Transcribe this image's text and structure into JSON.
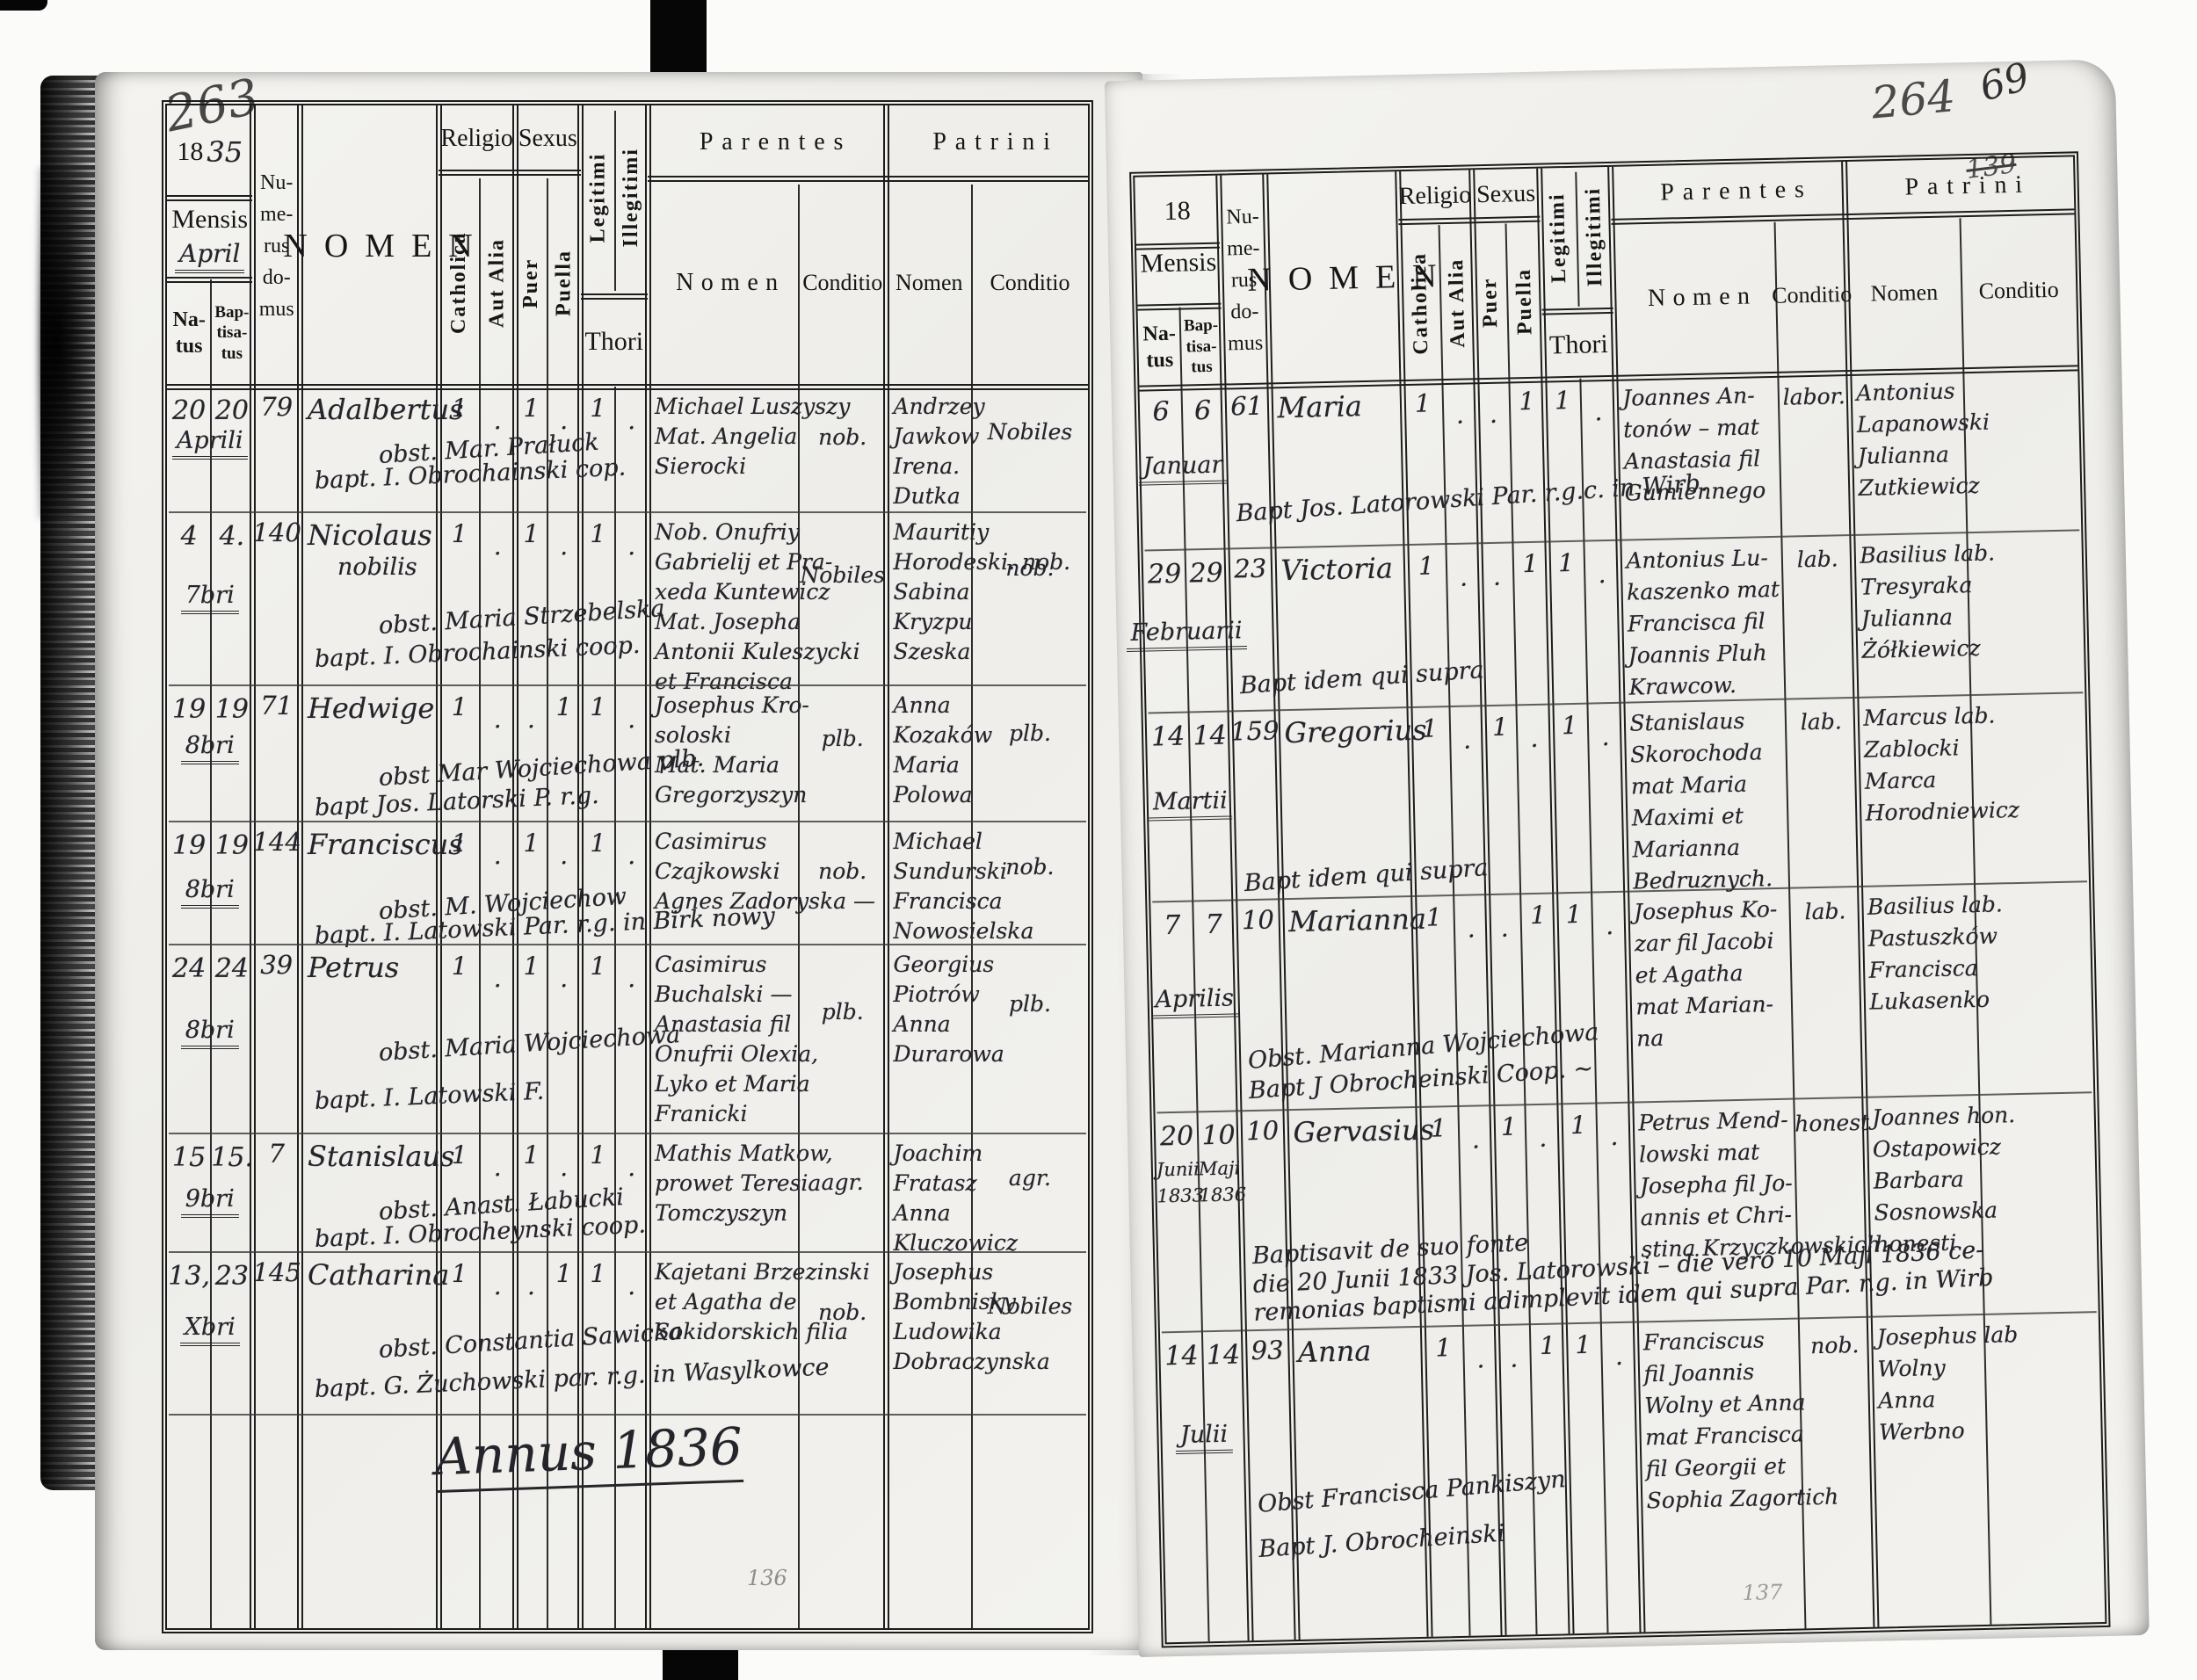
{
  "document_kind": "Parish baptismal register — two-page scanned spread",
  "pages": [
    {
      "pencil_top": "263",
      "pencil_bottom": "136",
      "annus": "Annus 1836",
      "header": {
        "year": "18",
        "year_hand": "35",
        "mensis": "Mensis",
        "mensis_hand": "April",
        "natus_lines": [
          "Na-",
          "tus"
        ],
        "baptisatus_lines": [
          "Bap-",
          "tisa-",
          "tus"
        ],
        "numerus_lines": [
          "Nu-",
          "me-",
          "rus",
          "do-",
          "mus"
        ],
        "nomen": "NOMEN",
        "religio": "Religio",
        "catholica": "Catholica",
        "aut_alia": "Aut Alia",
        "sexus": "Sexus",
        "puer": "Puer",
        "puella": "Puella",
        "legitimi": "Legitimi",
        "illegitimi": "Illegitimi",
        "thori": "Thori",
        "parentes": "Parentes",
        "patrini": "Patrini",
        "sub_nomen": "Nomen",
        "sub_conditio": "Conditio"
      },
      "entries": [
        {
          "natus_lines": [
            "20"
          ],
          "baptisatus_lines": [
            "20"
          ],
          "month": "Aprili",
          "domus": "79",
          "nomen_lines": [
            "Adalbertus"
          ],
          "marks": {
            "catholica": "1",
            "aut_alia": ".",
            "puer": "1",
            "puella": ".",
            "legitimi": "1",
            "illegitimi": "."
          },
          "obstetrix_note": "obst. Mar. Prałuck",
          "baptism_note": "bapt. I. Obrochainski cop.",
          "parentes_nomen_lines": [
            "Michael Luszyszy",
            "Mat. Angelia",
            "Sierocki"
          ],
          "parentes_conditio": "nob.",
          "patrini_nomen_lines": [
            "Andrzey",
            "Jawkow",
            "Irena.",
            "Dutka"
          ],
          "patrini_conditio": "Nobiles"
        },
        {
          "natus_lines": [
            "4"
          ],
          "baptisatus_lines": [
            "4."
          ],
          "month": "7bri",
          "domus": "140",
          "nomen_lines": [
            "Nicolaus",
            "nobilis"
          ],
          "marks": {
            "catholica": "1",
            "aut_alia": ".",
            "puer": "1",
            "puella": ".",
            "legitimi": "1",
            "illegitimi": "."
          },
          "obstetrix_note": "obst. Maria Strzebelska",
          "baptism_note": "bapt. I. Obrochainski coop.",
          "parentes_nomen_lines": [
            "Nob. Onufriy",
            "Gabrielij et Pra-",
            "xeda Kuntewicz",
            "Mat. Josepha",
            "Antonii Kuleszycki",
            "et Francisca"
          ],
          "parentes_conditio": "Nobiles",
          "patrini_nomen_lines": [
            "Mauritiy",
            "Horodeski. nob.",
            "Sabina",
            "Kryzpu",
            "Szeska"
          ],
          "patrini_conditio": "nob."
        },
        {
          "natus_lines": [
            "19"
          ],
          "baptisatus_lines": [
            "19"
          ],
          "month": "8bri",
          "domus": "71",
          "nomen_lines": [
            "Hedwige"
          ],
          "marks": {
            "catholica": "1",
            "aut_alia": ".",
            "puer": ".",
            "puella": "1",
            "legitimi": "1",
            "illegitimi": "."
          },
          "obstetrix_note": "obst Mar Wojciechowa plb.",
          "baptism_note": "bapt Jos. Latorski P. r.g.",
          "parentes_nomen_lines": [
            "Josephus Kro-",
            "soloski",
            "Mat. Maria",
            "Gregorzyszyn"
          ],
          "parentes_conditio": "plb.",
          "patrini_nomen_lines": [
            "Anna",
            "Kozaków",
            "Maria",
            "Polowa"
          ],
          "patrini_conditio": "plb."
        },
        {
          "natus_lines": [
            "19"
          ],
          "baptisatus_lines": [
            "19"
          ],
          "month": "8bri",
          "domus": "144",
          "nomen_lines": [
            "Franciscus"
          ],
          "marks": {
            "catholica": "1",
            "aut_alia": ".",
            "puer": "1",
            "puella": ".",
            "legitimi": "1",
            "illegitimi": "."
          },
          "obstetrix_note": "obst. M. Wojciechow",
          "baptism_note": "bapt. I. Latowski Par. r.g. in Birk nowy",
          "parentes_nomen_lines": [
            "Casimirus",
            "Czajkowski",
            "Agnes Zadoryska —"
          ],
          "parentes_conditio": "nob.",
          "patrini_nomen_lines": [
            "Michael",
            "Sundurski",
            "Francisca",
            "Nowosielska"
          ],
          "patrini_conditio": "nob."
        },
        {
          "natus_lines": [
            "24"
          ],
          "baptisatus_lines": [
            "24"
          ],
          "month": "8bri",
          "domus": "39",
          "nomen_lines": [
            "Petrus"
          ],
          "marks": {
            "catholica": "1",
            "aut_alia": ".",
            "puer": "1",
            "puella": ".",
            "legitimi": "1",
            "illegitimi": "."
          },
          "obstetrix_note": "obst. Maria Wojciechowa",
          "baptism_note": "bapt. I. Latowski F.",
          "parentes_nomen_lines": [
            "Casimirus",
            "Buchalski —",
            "Anastasia fil",
            "Onufrii Olexia,",
            "Lyko et Maria",
            "Franicki"
          ],
          "parentes_conditio": "plb.",
          "patrini_nomen_lines": [
            "Georgius",
            "Piotrów",
            "Anna",
            "Durarowa"
          ],
          "patrini_conditio": "plb."
        },
        {
          "natus_lines": [
            "15"
          ],
          "baptisatus_lines": [
            "15."
          ],
          "month": "9bri",
          "domus": "7",
          "nomen_lines": [
            "Stanislaus"
          ],
          "marks": {
            "catholica": "1",
            "aut_alia": ".",
            "puer": "1",
            "puella": ".",
            "legitimi": "1",
            "illegitimi": "."
          },
          "obstetrix_note": "obst. Anast. Łabucki",
          "baptism_note": "bapt. I. Obrocheynski coop.",
          "parentes_nomen_lines": [
            "Mathis Matkow,",
            "prowet Teresia",
            "Tomczyszyn"
          ],
          "parentes_conditio": "agr.",
          "patrini_nomen_lines": [
            "Joachim",
            "Fratasz",
            "Anna",
            "Kluczowicz"
          ],
          "patrini_conditio": "agr."
        },
        {
          "natus_lines": [
            "13,"
          ],
          "baptisatus_lines": [
            "23"
          ],
          "month": "Xbri",
          "domus": "145",
          "nomen_lines": [
            "Catharina"
          ],
          "marks": {
            "catholica": "1",
            "aut_alia": ".",
            "puer": ".",
            "puella": "1",
            "legitimi": "1",
            "illegitimi": "."
          },
          "obstetrix_note": "obst. Constantia Sawicka",
          "baptism_note": "bapt. G. Żuchowski par. r.g. in Wasylkowce",
          "parentes_nomen_lines": [
            "Kajetani Brzezinski",
            "et Agatha de",
            "Sokidorskich filia"
          ],
          "parentes_conditio": "nob.",
          "patrini_nomen_lines": [
            "Josephus",
            "Bombnisky",
            "Ludowika",
            "Dobraczynska"
          ],
          "patrini_conditio": "Nobiles"
        }
      ]
    },
    {
      "pencil_top": "264",
      "pencil_corner": "69",
      "pencil_crossed": "139",
      "pencil_bottom": "137",
      "annus": "",
      "header": {
        "year": "18",
        "year_hand": "",
        "mensis": "Mensis",
        "mensis_hand": "",
        "natus_lines": [
          "Na-",
          "tus"
        ],
        "baptisatus_lines": [
          "Bap-",
          "tisa-",
          "tus"
        ],
        "numerus_lines": [
          "Nu-",
          "me-",
          "rus",
          "do-",
          "mus"
        ],
        "nomen": "NOMEN",
        "religio": "Religio",
        "catholica": "Catholica",
        "aut_alia": "Aut Alia",
        "sexus": "Sexus",
        "puer": "Puer",
        "puella": "Puella",
        "legitimi": "Legitimi",
        "illegitimi": "Illegitimi",
        "thori": "Thori",
        "parentes": "Parentes",
        "patrini": "Patrini",
        "sub_nomen": "Nomen",
        "sub_conditio": "Conditio"
      },
      "entries": [
        {
          "natus_lines": [
            "6"
          ],
          "baptisatus_lines": [
            "6"
          ],
          "month": "Januar",
          "domus": "61",
          "nomen_lines": [
            "Maria"
          ],
          "marks": {
            "catholica": "1",
            "aut_alia": ".",
            "puer": ".",
            "puella": "1",
            "legitimi": "1",
            "illegitimi": "."
          },
          "obstetrix_note": "",
          "baptism_note": "Bapt Jos. Latorowski Par. r.g.c. in Wirb.",
          "parentes_nomen_lines": [
            "Joannes An-",
            "tonów – mat",
            "Anastasia fil",
            "Gumiennego"
          ],
          "parentes_conditio": "labor.",
          "patrini_nomen_lines": [
            "Antonius",
            "Lapanowski",
            "Julianna",
            "Zutkiewicz"
          ],
          "patrini_conditio": ""
        },
        {
          "natus_lines": [
            "29"
          ],
          "baptisatus_lines": [
            "29"
          ],
          "month": "Februarii",
          "domus": "23",
          "nomen_lines": [
            "Victoria"
          ],
          "marks": {
            "catholica": "1",
            "aut_alia": ".",
            "puer": ".",
            "puella": "1",
            "legitimi": "1",
            "illegitimi": "."
          },
          "obstetrix_note": "",
          "baptism_note": "Bapt idem qui supra",
          "parentes_nomen_lines": [
            "Antonius Lu-",
            "kaszenko mat",
            "Francisca fil",
            "Joannis Pluh",
            "Krawcow."
          ],
          "parentes_conditio": "lab.",
          "patrini_nomen_lines": [
            "Basilius lab.",
            "Tresyraka",
            "Julianna",
            "Żółkiewicz"
          ],
          "patrini_conditio": ""
        },
        {
          "natus_lines": [
            "14"
          ],
          "baptisatus_lines": [
            "14"
          ],
          "month": "Martii",
          "domus": "159",
          "nomen_lines": [
            "Gregorius"
          ],
          "marks": {
            "catholica": "1",
            "aut_alia": ".",
            "puer": "1",
            "puella": ".",
            "legitimi": "1",
            "illegitimi": "."
          },
          "obstetrix_note": "",
          "baptism_note": "Bapt idem qui supra",
          "parentes_nomen_lines": [
            "Stanislaus",
            "Skorochoda",
            "mat Maria",
            "Maximi et",
            "Marianna",
            "Bedruznych."
          ],
          "parentes_conditio": "lab.",
          "patrini_nomen_lines": [
            "Marcus lab.",
            "Zablocki",
            "Marca",
            "Horodniewicz"
          ],
          "patrini_conditio": ""
        },
        {
          "natus_lines": [
            "7"
          ],
          "baptisatus_lines": [
            "7"
          ],
          "month": "Aprilis",
          "domus": "10",
          "nomen_lines": [
            "Marianna"
          ],
          "marks": {
            "catholica": "1",
            "aut_alia": ".",
            "puer": ".",
            "puella": "1",
            "legitimi": "1",
            "illegitimi": "."
          },
          "obstetrix_note": "Obst. Marianna Wojciechowa",
          "baptism_note": "Bapt J Obrocheinski Coop. ~",
          "parentes_nomen_lines": [
            "Josephus Ko-",
            "zar fil Jacobi",
            "et Agatha",
            "mat Marian-",
            "na"
          ],
          "parentes_conditio": "lab.",
          "patrini_nomen_lines": [
            "Basilius lab.",
            "Pastuszków",
            "Francisca",
            "Lukasenko"
          ],
          "patrini_conditio": ""
        },
        {
          "natus_lines": [
            "20",
            "Junii",
            "1833"
          ],
          "baptisatus_lines": [
            "10",
            "Maji",
            "1836"
          ],
          "month": "",
          "domus": "10",
          "nomen_lines": [
            "Gervasius"
          ],
          "marks": {
            "catholica": "1",
            "aut_alia": ".",
            "puer": "1",
            "puella": ".",
            "legitimi": "1",
            "illegitimi": "."
          },
          "obstetrix_note": "",
          "baptism_note": "",
          "long_note_lines": [
            "Baptisavit de suo fonte",
            "die 20 Junii 1833 Jos. Latorowski – die vero 10 Maji 1836 ce-",
            "remonias baptismi adimplevit idem qui supra Par. r.g. in Wirb"
          ],
          "parentes_nomen_lines": [
            "Petrus Mend-",
            "lowski mat",
            "Josepha fil Jo-",
            "annis et Chri-",
            "stina Krzyczkowskich."
          ],
          "parentes_conditio": "honest",
          "patrini_nomen_lines": [
            "Joannes hon.",
            "Ostapowicz",
            "Barbara",
            "Sosnowska",
            "honesti"
          ],
          "patrini_conditio": ""
        },
        {
          "natus_lines": [
            "14"
          ],
          "baptisatus_lines": [
            "14"
          ],
          "month": "Julii",
          "domus": "93",
          "nomen_lines": [
            "Anna"
          ],
          "marks": {
            "catholica": "1",
            "aut_alia": ".",
            "puer": ".",
            "puella": "1",
            "legitimi": "1",
            "illegitimi": "."
          },
          "obstetrix_note": "Obst Francisca Pankiszyn",
          "baptism_note": "Bapt J. Obrocheinski",
          "parentes_nomen_lines": [
            "Franciscus",
            "fil Joannis",
            "Wolny et Anna",
            "mat Francisca",
            "fil Georgii et",
            "Sophia Zagortich"
          ],
          "parentes_conditio": "nob.",
          "patrini_nomen_lines": [
            "Josephus lab",
            "Wolny",
            "Anna",
            "Werbno"
          ],
          "patrini_conditio": ""
        }
      ]
    }
  ]
}
